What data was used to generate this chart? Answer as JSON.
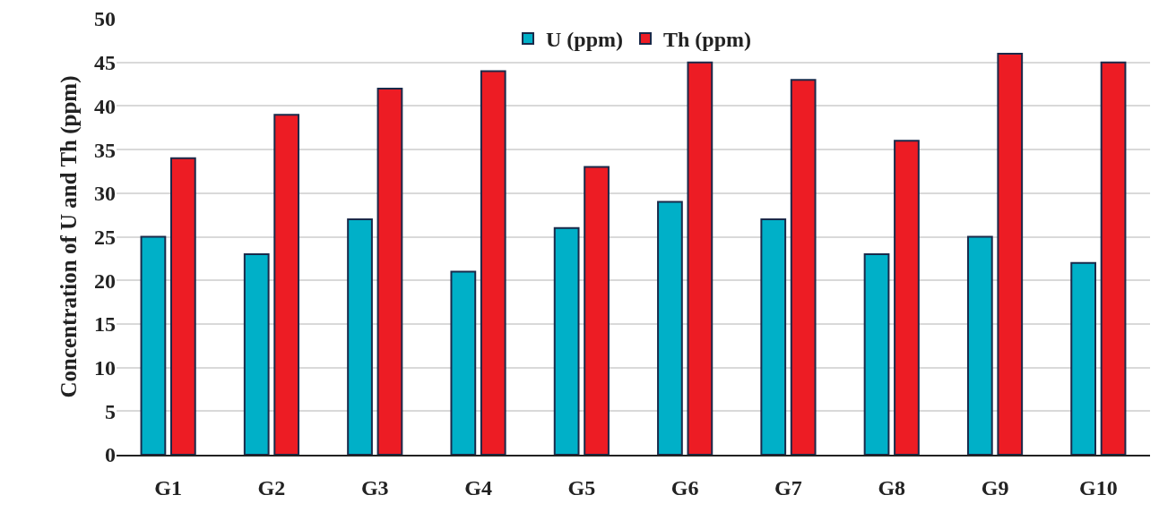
{
  "chart_data": {
    "type": "bar",
    "ylabel": "Concentration of U and Th (ppm)",
    "categories": [
      "G1",
      "G2",
      "G3",
      "G4",
      "G5",
      "G6",
      "G7",
      "G8",
      "G9",
      "G10"
    ],
    "series": [
      {
        "name": "U (ppm)",
        "color": "#00b0c8",
        "values": [
          25,
          23,
          27,
          21,
          26,
          29,
          27,
          23,
          25,
          22
        ]
      },
      {
        "name": "Th (ppm)",
        "color": "#ed1c24",
        "values": [
          34,
          39,
          42,
          44,
          33,
          45,
          43,
          36,
          46,
          45
        ]
      }
    ],
    "ylim": [
      0,
      50
    ],
    "yticks": [
      0,
      5,
      10,
      15,
      20,
      25,
      30,
      35,
      40,
      45,
      50
    ],
    "grid": "y",
    "legend": "top"
  }
}
